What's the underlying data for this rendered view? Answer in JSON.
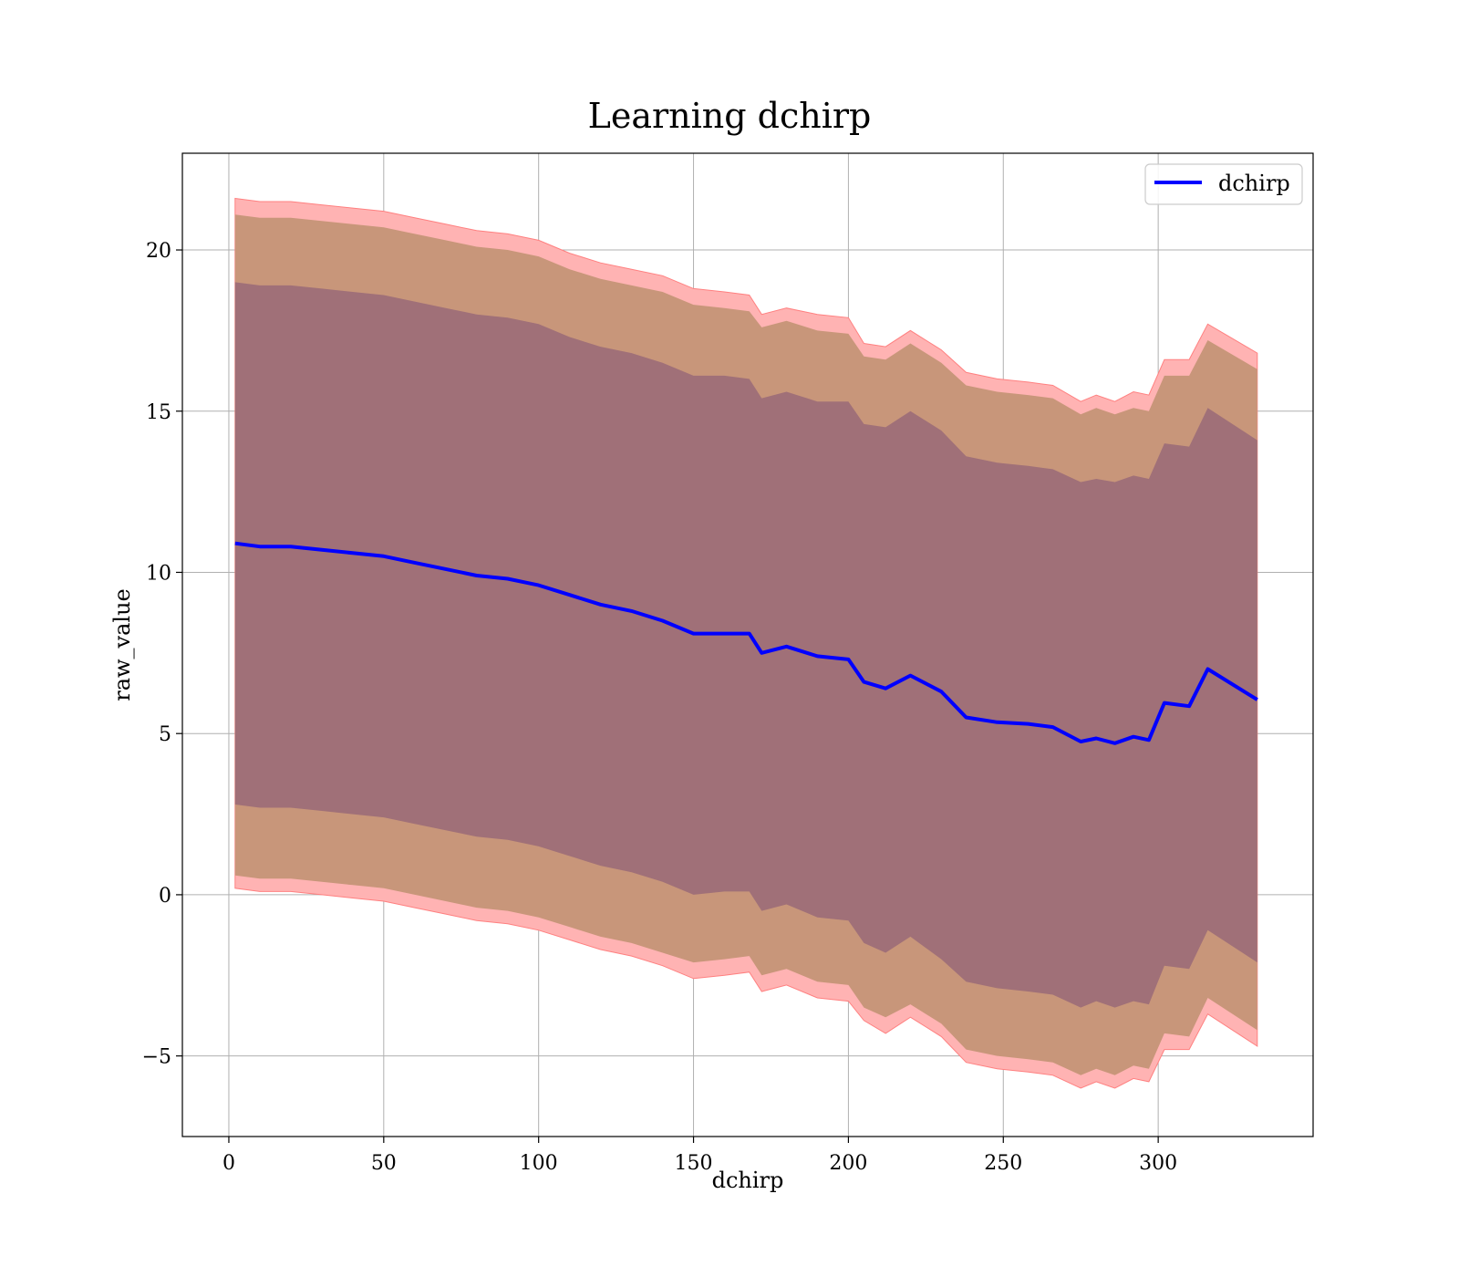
{
  "chart_data": {
    "type": "line",
    "title": "Learning dchirp",
    "xlabel": "dchirp",
    "ylabel": "raw_value",
    "xlim": [
      -15,
      350
    ],
    "ylim": [
      -7.5,
      23
    ],
    "xticks": [
      0,
      50,
      100,
      150,
      200,
      250,
      300
    ],
    "yticks": [
      -5,
      0,
      5,
      10,
      15,
      20
    ],
    "ytick_labels": [
      "−5",
      "0",
      "5",
      "10",
      "15",
      "20"
    ],
    "grid": true,
    "legend_position": "top-right",
    "colors": {
      "line": "#0000ff",
      "outer_band": "#ffb3b3",
      "outer_band_edge": "#ff8080",
      "middle_band": "#c8967a",
      "inner_band": "#a07078"
    },
    "series": [
      {
        "name": "dchirp",
        "x": [
          2,
          10,
          20,
          30,
          40,
          50,
          60,
          70,
          80,
          90,
          100,
          110,
          120,
          130,
          140,
          150,
          160,
          168,
          172,
          180,
          190,
          200,
          205,
          212,
          220,
          230,
          238,
          248,
          258,
          266,
          275,
          280,
          286,
          292,
          297,
          302,
          310,
          316,
          332
        ],
        "y": [
          10.9,
          10.8,
          10.8,
          10.7,
          10.6,
          10.5,
          10.3,
          10.1,
          9.9,
          9.8,
          9.6,
          9.3,
          9.0,
          8.8,
          8.5,
          8.1,
          8.1,
          8.1,
          7.5,
          7.7,
          7.4,
          7.3,
          6.6,
          6.4,
          6.8,
          6.3,
          5.5,
          5.35,
          5.3,
          5.2,
          4.75,
          4.85,
          4.7,
          4.9,
          4.8,
          5.95,
          5.85,
          7.0,
          6.05
        ]
      }
    ],
    "bands": [
      {
        "x": [
          2,
          10,
          20,
          30,
          40,
          50,
          60,
          70,
          80,
          90,
          100,
          110,
          120,
          130,
          140,
          150,
          160,
          168,
          172,
          180,
          190,
          200,
          205,
          212,
          220,
          230,
          238,
          248,
          258,
          266,
          275,
          280,
          286,
          292,
          297,
          302,
          310,
          316,
          332
        ],
        "upper": [
          21.6,
          21.5,
          21.5,
          21.4,
          21.3,
          21.2,
          21.0,
          20.8,
          20.6,
          20.5,
          20.3,
          19.9,
          19.6,
          19.4,
          19.2,
          18.8,
          18.7,
          18.6,
          18.0,
          18.2,
          18.0,
          17.9,
          17.1,
          17.0,
          17.5,
          16.9,
          16.2,
          16.0,
          15.9,
          15.8,
          15.3,
          15.5,
          15.3,
          15.6,
          15.5,
          16.6,
          16.6,
          17.7,
          16.8
        ],
        "lower": [
          0.2,
          0.1,
          0.1,
          0.0,
          -0.1,
          -0.2,
          -0.4,
          -0.6,
          -0.8,
          -0.9,
          -1.1,
          -1.4,
          -1.7,
          -1.9,
          -2.2,
          -2.6,
          -2.5,
          -2.4,
          -3.0,
          -2.8,
          -3.2,
          -3.3,
          -3.9,
          -4.3,
          -3.8,
          -4.4,
          -5.2,
          -5.4,
          -5.5,
          -5.6,
          -6.0,
          -5.8,
          -6.0,
          -5.7,
          -5.8,
          -4.8,
          -4.8,
          -3.7,
          -4.7
        ]
      },
      {
        "x": [
          2,
          10,
          20,
          30,
          40,
          50,
          60,
          70,
          80,
          90,
          100,
          110,
          120,
          130,
          140,
          150,
          160,
          168,
          172,
          180,
          190,
          200,
          205,
          212,
          220,
          230,
          238,
          248,
          258,
          266,
          275,
          280,
          286,
          292,
          297,
          302,
          310,
          316,
          332
        ],
        "upper": [
          21.1,
          21.0,
          21.0,
          20.9,
          20.8,
          20.7,
          20.5,
          20.3,
          20.1,
          20.0,
          19.8,
          19.4,
          19.1,
          18.9,
          18.7,
          18.3,
          18.2,
          18.1,
          17.6,
          17.8,
          17.5,
          17.4,
          16.7,
          16.6,
          17.1,
          16.5,
          15.8,
          15.6,
          15.5,
          15.4,
          14.9,
          15.1,
          14.9,
          15.1,
          15.0,
          16.1,
          16.1,
          17.2,
          16.3
        ],
        "lower": [
          0.6,
          0.5,
          0.5,
          0.4,
          0.3,
          0.2,
          0.0,
          -0.2,
          -0.4,
          -0.5,
          -0.7,
          -1.0,
          -1.3,
          -1.5,
          -1.8,
          -2.1,
          -2.0,
          -1.9,
          -2.5,
          -2.3,
          -2.7,
          -2.8,
          -3.5,
          -3.8,
          -3.4,
          -4.0,
          -4.8,
          -5.0,
          -5.1,
          -5.2,
          -5.6,
          -5.4,
          -5.6,
          -5.3,
          -5.4,
          -4.3,
          -4.4,
          -3.2,
          -4.2
        ]
      },
      {
        "x": [
          2,
          10,
          20,
          30,
          40,
          50,
          60,
          70,
          80,
          90,
          100,
          110,
          120,
          130,
          140,
          150,
          160,
          168,
          172,
          180,
          190,
          200,
          205,
          212,
          220,
          230,
          238,
          248,
          258,
          266,
          275,
          280,
          286,
          292,
          297,
          302,
          310,
          316,
          332
        ],
        "upper": [
          19.0,
          18.9,
          18.9,
          18.8,
          18.7,
          18.6,
          18.4,
          18.2,
          18.0,
          17.9,
          17.7,
          17.3,
          17.0,
          16.8,
          16.5,
          16.1,
          16.1,
          16.0,
          15.4,
          15.6,
          15.3,
          15.3,
          14.6,
          14.5,
          15.0,
          14.4,
          13.6,
          13.4,
          13.3,
          13.2,
          12.8,
          12.9,
          12.8,
          13.0,
          12.9,
          14.0,
          13.9,
          15.1,
          14.1
        ],
        "lower": [
          2.8,
          2.7,
          2.7,
          2.6,
          2.5,
          2.4,
          2.2,
          2.0,
          1.8,
          1.7,
          1.5,
          1.2,
          0.9,
          0.7,
          0.4,
          0.0,
          0.1,
          0.1,
          -0.5,
          -0.3,
          -0.7,
          -0.8,
          -1.5,
          -1.8,
          -1.3,
          -2.0,
          -2.7,
          -2.9,
          -3.0,
          -3.1,
          -3.5,
          -3.3,
          -3.5,
          -3.3,
          -3.4,
          -2.2,
          -2.3,
          -1.1,
          -2.1
        ]
      }
    ],
    "legend": {
      "entries": [
        "dchirp"
      ]
    }
  }
}
